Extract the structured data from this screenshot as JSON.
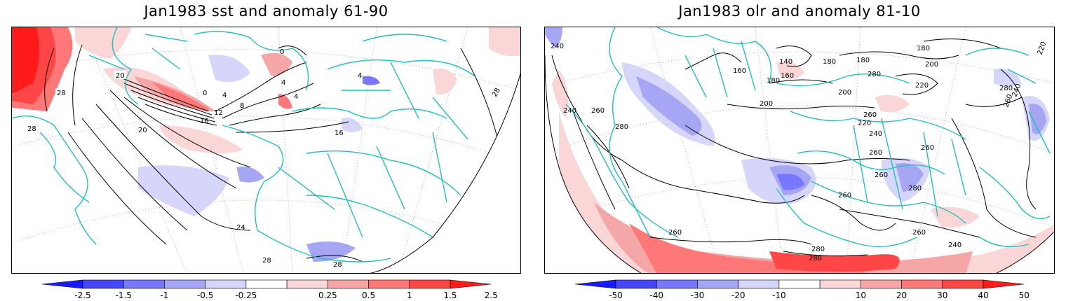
{
  "panels": [
    {
      "title": "Jan1983 sst and anomaly 61-90",
      "contour_labels": [
        "20",
        "28",
        "28",
        "20",
        "0",
        "4",
        "4",
        "4",
        "8",
        "12",
        "16",
        "16",
        "0",
        "4",
        "24",
        "28",
        "28",
        "28"
      ]
    },
    {
      "title": "Jan1983 olr and anomaly 81-10",
      "contour_labels": [
        "240",
        "140",
        "160",
        "180",
        "160",
        "180",
        "180",
        "180",
        "200",
        "220",
        "280",
        "200",
        "220",
        "220",
        "200",
        "240",
        "260",
        "280",
        "260",
        "240",
        "280",
        "260",
        "240",
        "260",
        "260",
        "280",
        "260",
        "260",
        "260",
        "280",
        "280",
        "240",
        "260"
      ]
    }
  ],
  "colorbars": [
    {
      "labels": [
        "-2.5",
        "-1.5",
        "-1",
        "-0.5",
        "-0.25",
        "0.25",
        "0.5",
        "1",
        "1.5",
        "2.5"
      ]
    },
    {
      "labels": [
        "-50",
        "-40",
        "-30",
        "-20",
        "-10",
        "10",
        "20",
        "30",
        "40",
        "50"
      ]
    }
  ],
  "colors": {
    "neg": [
      "#1a1aff",
      "#4646ff",
      "#7878ff",
      "#a6a6f5",
      "#d6d6fa"
    ],
    "pos": [
      "#fad6d6",
      "#f5a6a6",
      "#ff7878",
      "#ff4646",
      "#ff1a1a"
    ],
    "coast": "#20c0c0",
    "contour": "#000000",
    "grid": "#999999"
  }
}
